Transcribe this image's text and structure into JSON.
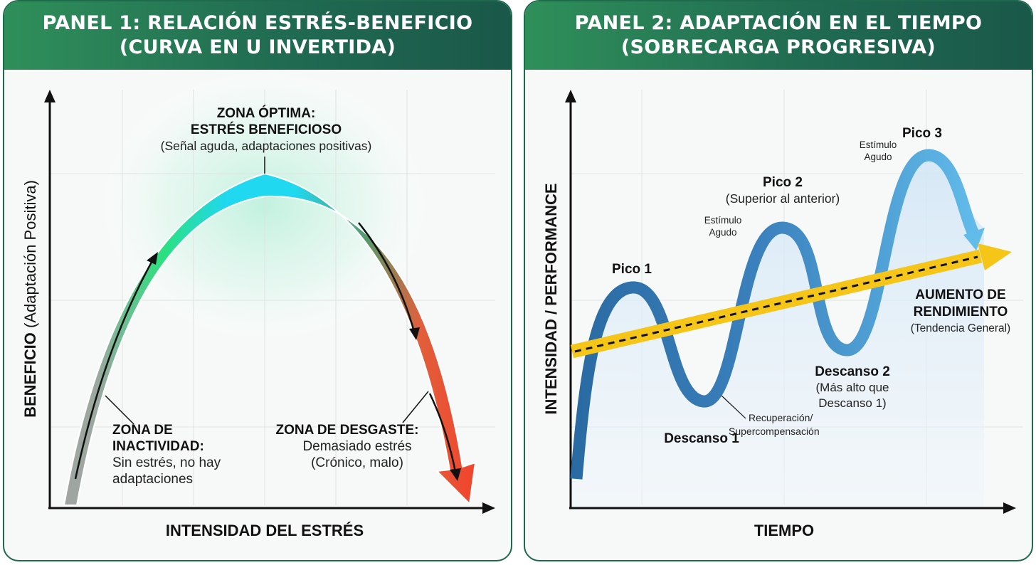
{
  "colors": {
    "header_green": "#206b52",
    "frame_green": "#1f6a4c",
    "inactive_gray": "#a3a3a3",
    "optimal_cyan": "#20d8f0",
    "rise_green": "#2be07e",
    "wear_red": "#f2442c",
    "wave_dark_blue": "#2f6fa6",
    "wave_light_blue": "#5db4e4",
    "trend_yellow": "#f5c518"
  },
  "panel1": {
    "title_line1": "PANEL 1: RELACIÓN ESTRÉS-BENEFICIO",
    "title_line2": "(CURVA EN U INVERTIDA)",
    "y_axis_bold": "BENEFICIO",
    "y_axis_rest": " (Adaptación Positiva)",
    "x_axis": "INTENSIDAD DEL ESTRÉS",
    "optimal": {
      "line1": "ZONA ÓPTIMA:",
      "line2": "ESTRÉS BENEFICIOSO",
      "line3": "(Señal aguda, adaptaciones positivas)"
    },
    "inactivity": {
      "line1": "ZONA DE",
      "line2": "INACTIVIDAD:",
      "line3": "Sin estrés, no hay",
      "line4": "adaptaciones"
    },
    "wear": {
      "line1": "ZONA DE DESGASTE:",
      "line2": "Demasiado estrés",
      "line3": "(Crónico, malo)"
    }
  },
  "panel2": {
    "title_line1": "PANEL 2: ADAPTACIÓN EN EL TIEMPO",
    "title_line2": "(SOBRECARGA PROGRESIVA)",
    "y_axis": "INTENSIDAD / PERFORMANCE",
    "x_axis": "TIEMPO",
    "peak1": "Pico 1",
    "peak2": "Pico 2",
    "peak2_note": "(Superior al anterior)",
    "peak3": "Pico 3",
    "stimulus_a_line1": "Estímulo",
    "stimulus_a_line2": "Agudo",
    "stimulus_b_line1": "Estímulo",
    "stimulus_b_line2": "Agudo",
    "rest1": "Descanso 1",
    "recovery_line1": "Recuperación/",
    "recovery_line2": "Supercompensación",
    "rest2": "Descanso 2",
    "rest2_note_line1": "(Más alto que",
    "rest2_note_line2": "Descanso 1)",
    "trend_line1": "AUMENTO DE",
    "trend_line2": "RENDIMIENTO",
    "trend_note": "(Tendencia General)"
  }
}
